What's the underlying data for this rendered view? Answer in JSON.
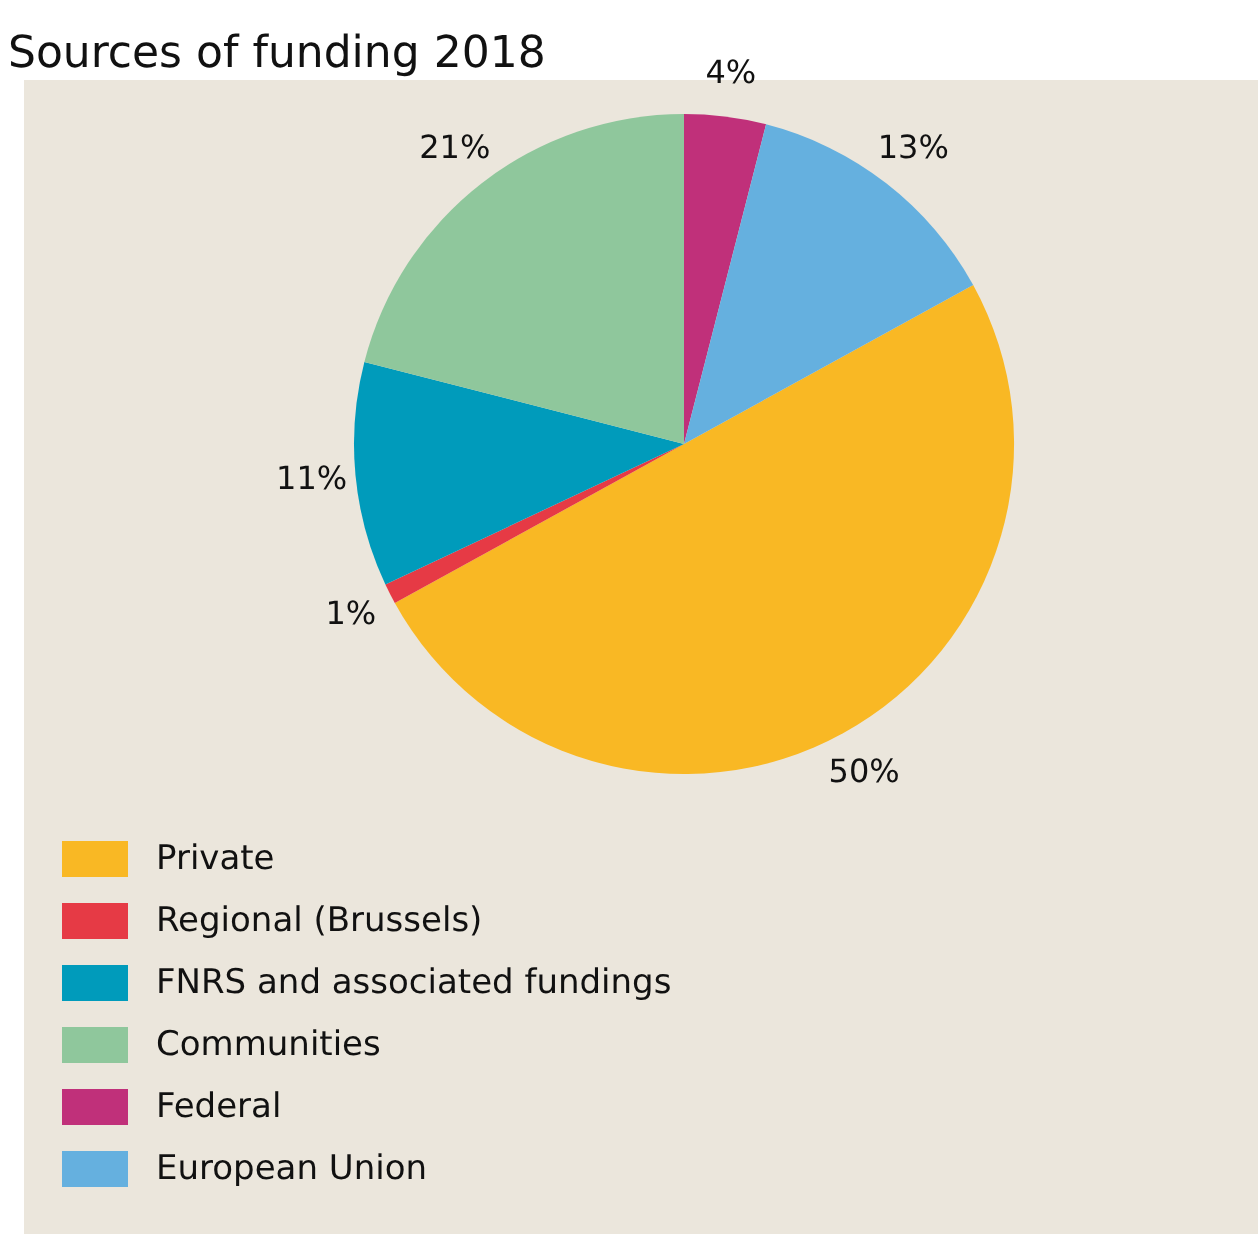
{
  "chart_data": {
    "type": "pie",
    "title": "Sources of funding 2018",
    "categories": [
      "Private",
      "Regional (Brussels)",
      "FNRS and associated fundings",
      "Communities",
      "Federal",
      "European Union"
    ],
    "values": [
      50,
      1,
      11,
      21,
      4,
      13
    ],
    "value_labels": [
      "50%",
      "1%",
      "11%",
      "21%",
      "4%",
      "13%"
    ],
    "colors": [
      "#f9b824",
      "#e63a45",
      "#009bbb",
      "#8fc79c",
      "#c0307a",
      "#65b0df"
    ],
    "legend": "bottom left"
  }
}
